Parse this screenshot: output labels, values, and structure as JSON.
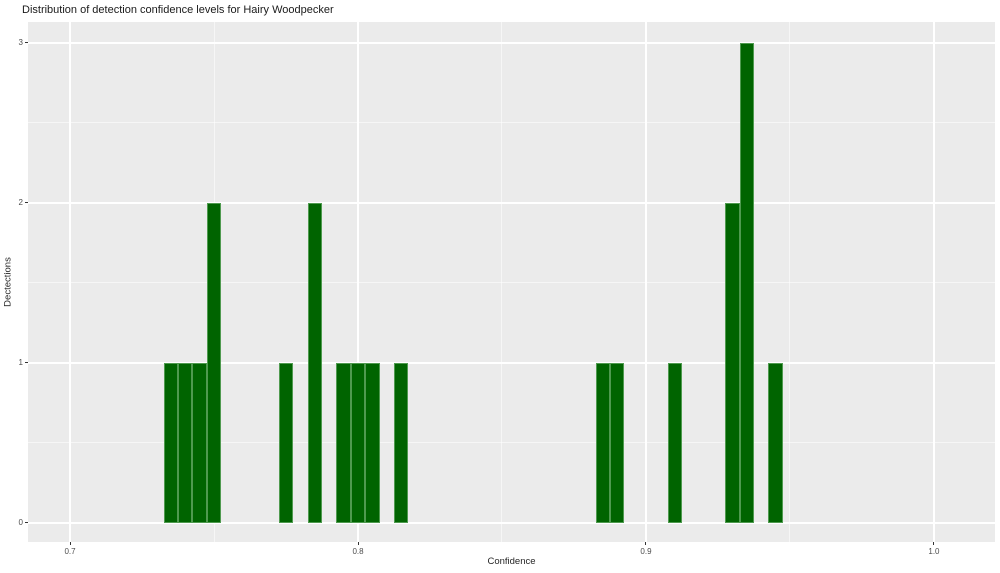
{
  "title": "Distribution of detection confidence levels for Hairy Woodpecker",
  "chart_data": {
    "type": "bar",
    "subtype": "histogram",
    "title": "Distribution of detection confidence levels for Hairy Woodpecker",
    "xlabel": "Confidence",
    "ylabel": "Dectections",
    "binwidth": 0.005,
    "bins": [
      {
        "x": 0.735,
        "count": 1
      },
      {
        "x": 0.74,
        "count": 1
      },
      {
        "x": 0.745,
        "count": 1
      },
      {
        "x": 0.75,
        "count": 2
      },
      {
        "x": 0.775,
        "count": 1
      },
      {
        "x": 0.785,
        "count": 2
      },
      {
        "x": 0.795,
        "count": 1
      },
      {
        "x": 0.8,
        "count": 1
      },
      {
        "x": 0.805,
        "count": 1
      },
      {
        "x": 0.815,
        "count": 1
      },
      {
        "x": 0.885,
        "count": 1
      },
      {
        "x": 0.89,
        "count": 1
      },
      {
        "x": 0.91,
        "count": 1
      },
      {
        "x": 0.93,
        "count": 2
      },
      {
        "x": 0.935,
        "count": 3
      },
      {
        "x": 0.945,
        "count": 1
      }
    ],
    "x_ticks": [
      0.7,
      0.8,
      0.9,
      1.0
    ],
    "x_tick_labels": [
      "0.7",
      "0.8",
      "0.9",
      "1.0"
    ],
    "x_minor_ticks": [
      0.75,
      0.85,
      0.95
    ],
    "y_ticks": [
      0,
      1,
      2,
      3
    ],
    "y_tick_labels": [
      "0",
      "1",
      "2",
      "3"
    ],
    "y_minor_ticks": [
      0.5,
      1.5,
      2.5
    ],
    "xlim": [
      0.6854,
      1.0212
    ],
    "ylim": [
      -0.12,
      3.13
    ],
    "grid": true,
    "legend": false,
    "colors": {
      "bar_fill": "#006400",
      "bar_edge": "#4f9a4f",
      "panel_bg": "#ebebeb",
      "grid_major": "#ffffff",
      "tick_label": "#4d4d4d",
      "axis_title": "#262626",
      "page_bg": "#ffffff"
    }
  }
}
